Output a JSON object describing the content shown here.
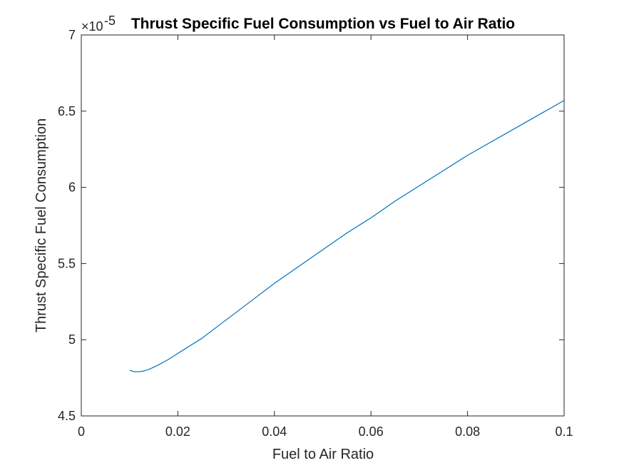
{
  "chart_data": {
    "type": "line",
    "title": "Thrust Specific Fuel Consumption vs Fuel to Air Ratio",
    "xlabel": "Fuel to Air Ratio",
    "ylabel": "Thrust Specific Fuel Consumption",
    "xlim": [
      0,
      0.1
    ],
    "ylim": [
      4.5,
      7
    ],
    "y_exponent_base": "×10",
    "y_exponent": "-5",
    "xticks": [
      0,
      0.02,
      0.04,
      0.06,
      0.08,
      0.1
    ],
    "xtick_labels": [
      "0",
      "0.02",
      "0.04",
      "0.06",
      "0.08",
      "0.1"
    ],
    "yticks": [
      4.5,
      5,
      5.5,
      6,
      6.5,
      7
    ],
    "ytick_labels": [
      "4.5",
      "5",
      "5.5",
      "6",
      "6.5",
      "7"
    ],
    "grid": false,
    "line_color": "#0072BD",
    "series": [
      {
        "x": [
          0.01,
          0.011,
          0.012,
          0.013,
          0.014,
          0.015,
          0.016,
          0.018,
          0.02,
          0.022,
          0.025,
          0.03,
          0.035,
          0.04,
          0.045,
          0.05,
          0.055,
          0.06,
          0.065,
          0.07,
          0.075,
          0.08,
          0.085,
          0.09,
          0.095,
          0.1
        ],
        "y": [
          4.8,
          4.79,
          4.79,
          4.795,
          4.805,
          4.82,
          4.835,
          4.87,
          4.91,
          4.95,
          5.01,
          5.13,
          5.25,
          5.37,
          5.48,
          5.59,
          5.7,
          5.8,
          5.91,
          6.01,
          6.11,
          6.21,
          6.3,
          6.39,
          6.48,
          6.57
        ]
      }
    ]
  }
}
